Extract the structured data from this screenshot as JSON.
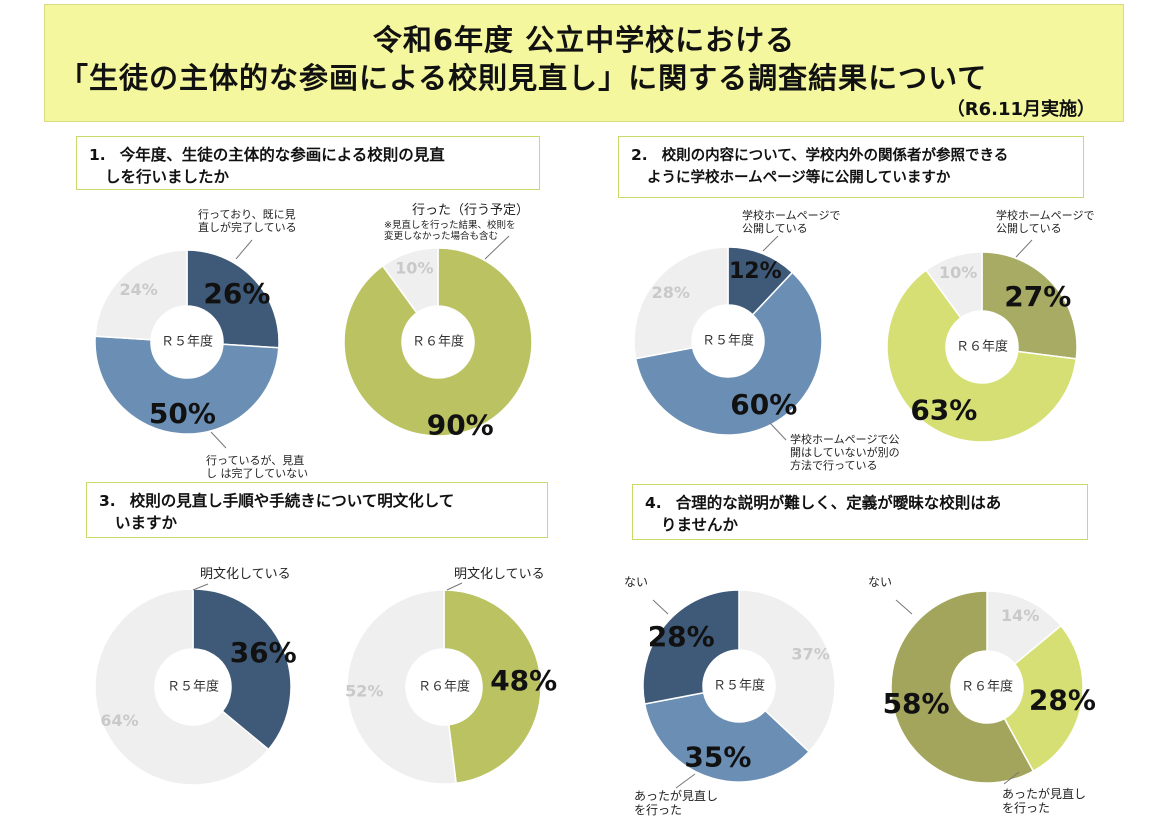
{
  "header": {
    "title_line1": "令和6年度 公立中学校における",
    "title_line2": "「生徒の主体的な参画による校則見直し」に関する調査結果について",
    "date": "（R6.11月実施）"
  },
  "questions": [
    {
      "number": "1.",
      "line1": "今年度、生徒の主体的な参画による校則の見直",
      "line2": "しを行いましたか"
    },
    {
      "number": "2.",
      "line1": "校則の内容について、学校内外の関係者が参照できる",
      "line2": "ように学校ホームページ等に公開していますか"
    },
    {
      "number": "3.",
      "line1": "校則の見直し手順や手続きについて明文化して",
      "line2": "いますか"
    },
    {
      "number": "4.",
      "line1": "合理的な説明が難しく、定義が曖昧な校則はあ",
      "line2": "りませんか"
    }
  ],
  "colors": {
    "navy": "#3f5a78",
    "steel": "#6b8fb4",
    "gray": "#efefef",
    "olive": "#a8ab63",
    "olive_dark": "#a3a55c",
    "lime": "#d5df74"
  },
  "chart_data": [
    {
      "type": "pie",
      "question": 1,
      "center_label": "Ｒ５年度",
      "slices": [
        {
          "value": 26,
          "label": "26%",
          "color": "#3f5a78"
        },
        {
          "value": 50,
          "label": "50%",
          "color": "#6b8fb4"
        },
        {
          "value": 24,
          "label": "24%",
          "color": "#efefef"
        }
      ],
      "annotations": [
        {
          "text": [
            "行っており、既に見",
            "直しが完了している"
          ]
        },
        {
          "text": [
            "行っているが、見直",
            "し は完了していない"
          ]
        }
      ]
    },
    {
      "type": "pie",
      "question": 1,
      "center_label": "Ｒ６年度",
      "slices": [
        {
          "value": 90,
          "label": "90%",
          "color": "#bac262"
        },
        {
          "value": 10,
          "label": "10%",
          "color": "#efefef"
        }
      ],
      "annotations": [
        {
          "text": [
            "行った（行う予定）"
          ]
        },
        {
          "text": [
            "※見直しを行った結果、校則を",
            "変更しなかった場合も含む"
          ]
        }
      ]
    },
    {
      "type": "pie",
      "question": 2,
      "center_label": "Ｒ５年度",
      "slices": [
        {
          "value": 12,
          "label": "12%",
          "color": "#3f5a78"
        },
        {
          "value": 60,
          "label": "60%",
          "color": "#6b8fb4"
        },
        {
          "value": 28,
          "label": "28%",
          "color": "#efefef"
        }
      ],
      "annotations": [
        {
          "text": [
            "学校ホームページで",
            "公開している"
          ]
        },
        {
          "text": [
            "学校ホームページで公",
            "開はしていないが別の",
            "方法で行っている"
          ]
        }
      ]
    },
    {
      "type": "pie",
      "question": 2,
      "center_label": "Ｒ６年度",
      "slices": [
        {
          "value": 27,
          "label": "27%",
          "color": "#a8ab63"
        },
        {
          "value": 63,
          "label": "63%",
          "color": "#d5df74"
        },
        {
          "value": 10,
          "label": "10%",
          "color": "#efefef"
        }
      ],
      "annotations": [
        {
          "text": [
            "学校ホームページで",
            "公開している"
          ]
        }
      ]
    },
    {
      "type": "pie",
      "question": 3,
      "center_label": "Ｒ５年度",
      "slices": [
        {
          "value": 36,
          "label": "36%",
          "color": "#3f5a78"
        },
        {
          "value": 64,
          "label": "64%",
          "color": "#efefef"
        }
      ],
      "annotations": [
        {
          "text": [
            "明文化している"
          ]
        }
      ]
    },
    {
      "type": "pie",
      "question": 3,
      "center_label": "Ｒ６年度",
      "slices": [
        {
          "value": 48,
          "label": "48%",
          "color": "#bac262"
        },
        {
          "value": 52,
          "label": "52%",
          "color": "#efefef"
        }
      ],
      "annotations": [
        {
          "text": [
            "明文化している"
          ]
        }
      ]
    },
    {
      "type": "pie",
      "question": 4,
      "center_label": "Ｒ５年度",
      "slices": [
        {
          "value": 37,
          "label": "37%",
          "color": "#efefef"
        },
        {
          "value": 35,
          "label": "35%",
          "color": "#6b8fb4"
        },
        {
          "value": 28,
          "label": "28%",
          "color": "#3f5a78"
        }
      ],
      "annotations": [
        {
          "text": [
            "ない"
          ]
        },
        {
          "text": [
            "あったが見直し",
            "を行った"
          ]
        }
      ]
    },
    {
      "type": "pie",
      "question": 4,
      "center_label": "Ｒ６年度",
      "slices": [
        {
          "value": 14,
          "label": "14%",
          "color": "#efefef"
        },
        {
          "value": 28,
          "label": "28%",
          "color": "#d5df74"
        },
        {
          "value": 58,
          "label": "58%",
          "color": "#a3a55c"
        }
      ],
      "annotations": [
        {
          "text": [
            "ない"
          ]
        },
        {
          "text": [
            "あったが見直し",
            "を行った"
          ]
        }
      ]
    }
  ]
}
